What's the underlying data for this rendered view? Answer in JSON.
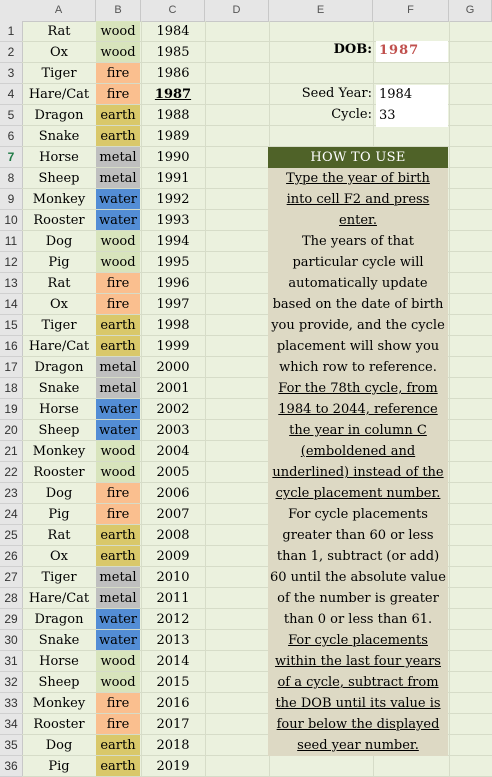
{
  "columns": [
    "A",
    "B",
    "C",
    "D",
    "E",
    "F",
    "G"
  ],
  "rows": [
    [
      "Rat",
      "wood",
      "1984"
    ],
    [
      "Ox",
      "wood",
      "1985"
    ],
    [
      "Tiger",
      "fire",
      "1986"
    ],
    [
      "Hare/Cat",
      "fire",
      "1987"
    ],
    [
      "Dragon",
      "earth",
      "1988"
    ],
    [
      "Snake",
      "earth",
      "1989"
    ],
    [
      "Horse",
      "metal",
      "1990"
    ],
    [
      "Sheep",
      "metal",
      "1991"
    ],
    [
      "Monkey",
      "water",
      "1992"
    ],
    [
      "Rooster",
      "water",
      "1993"
    ],
    [
      "Dog",
      "wood",
      "1994"
    ],
    [
      "Pig",
      "wood",
      "1995"
    ],
    [
      "Rat",
      "fire",
      "1996"
    ],
    [
      "Ox",
      "fire",
      "1997"
    ],
    [
      "Tiger",
      "earth",
      "1998"
    ],
    [
      "Hare/Cat",
      "earth",
      "1999"
    ],
    [
      "Dragon",
      "metal",
      "2000"
    ],
    [
      "Snake",
      "metal",
      "2001"
    ],
    [
      "Horse",
      "water",
      "2002"
    ],
    [
      "Sheep",
      "water",
      "2003"
    ],
    [
      "Monkey",
      "wood",
      "2004"
    ],
    [
      "Rooster",
      "wood",
      "2005"
    ],
    [
      "Dog",
      "fire",
      "2006"
    ],
    [
      "Pig",
      "fire",
      "2007"
    ],
    [
      "Rat",
      "earth",
      "2008"
    ],
    [
      "Ox",
      "earth",
      "2009"
    ],
    [
      "Tiger",
      "metal",
      "2010"
    ],
    [
      "Hare/Cat",
      "metal",
      "2011"
    ],
    [
      "Dragon",
      "water",
      "2012"
    ],
    [
      "Snake",
      "water",
      "2013"
    ],
    [
      "Horse",
      "wood",
      "2014"
    ],
    [
      "Sheep",
      "wood",
      "2015"
    ],
    [
      "Monkey",
      "fire",
      "2016"
    ],
    [
      "Rooster",
      "fire",
      "2017"
    ],
    [
      "Dog",
      "earth",
      "2018"
    ],
    [
      "Pig",
      "earth",
      "2019"
    ]
  ],
  "element_colors": {
    "wood": "#d8e4bc",
    "fire": "#fabf8f",
    "earth": "#d9c86a",
    "metal": "#bfbfbf",
    "water": "#538dd5"
  },
  "highlight_year": "1987",
  "selected_row": 7,
  "dob": {
    "label": "DOB:",
    "value": "1987",
    "color": "#c0504d"
  },
  "seed": {
    "label": "Seed Year:",
    "value": "1984"
  },
  "cycle": {
    "label": "Cycle:",
    "value": "33"
  },
  "how_to_use": {
    "title": "HOW TO USE",
    "lines": [
      {
        "text": "Type the year of birth",
        "underline": true
      },
      {
        "text": "into cell F2 and press",
        "underline": true
      },
      {
        "text": "enter.",
        "underline": true
      },
      {
        "text": "The years of that",
        "underline": false
      },
      {
        "text": "particular cycle will",
        "underline": false
      },
      {
        "text": "automatically update",
        "underline": false
      },
      {
        "text": "based on the date of birth",
        "underline": false
      },
      {
        "text": "you provide, and the cycle",
        "underline": false
      },
      {
        "text": "placement will show you",
        "underline": false
      },
      {
        "text": "which row to reference.",
        "underline": false
      },
      {
        "text": "For the 78th cycle, from",
        "underline": true
      },
      {
        "text": "1984 to 2044, reference",
        "underline": true
      },
      {
        "text": "the year in column C",
        "underline": true
      },
      {
        "text": "(emboldened and",
        "underline": true
      },
      {
        "text": "underlined) instead of the",
        "underline": true
      },
      {
        "text": "cycle placement number.",
        "underline": true
      },
      {
        "text": "For cycle placements",
        "underline": false
      },
      {
        "text": "greater than 60 or less",
        "underline": false
      },
      {
        "text": "than 1, subtract (or add)",
        "underline": false
      },
      {
        "text": "60 until the absolute value",
        "underline": false
      },
      {
        "text": "of the number is greater",
        "underline": false
      },
      {
        "text": "than 0 or less than 61.",
        "underline": false
      },
      {
        "text": "For cycle placements",
        "underline": true
      },
      {
        "text": "within the last four years",
        "underline": true
      },
      {
        "text": "of a cycle, subtract from",
        "underline": true
      },
      {
        "text": "the DOB until its value is",
        "underline": true
      },
      {
        "text": "four below the displayed",
        "underline": true
      },
      {
        "text": "seed year number.",
        "underline": true
      }
    ]
  }
}
